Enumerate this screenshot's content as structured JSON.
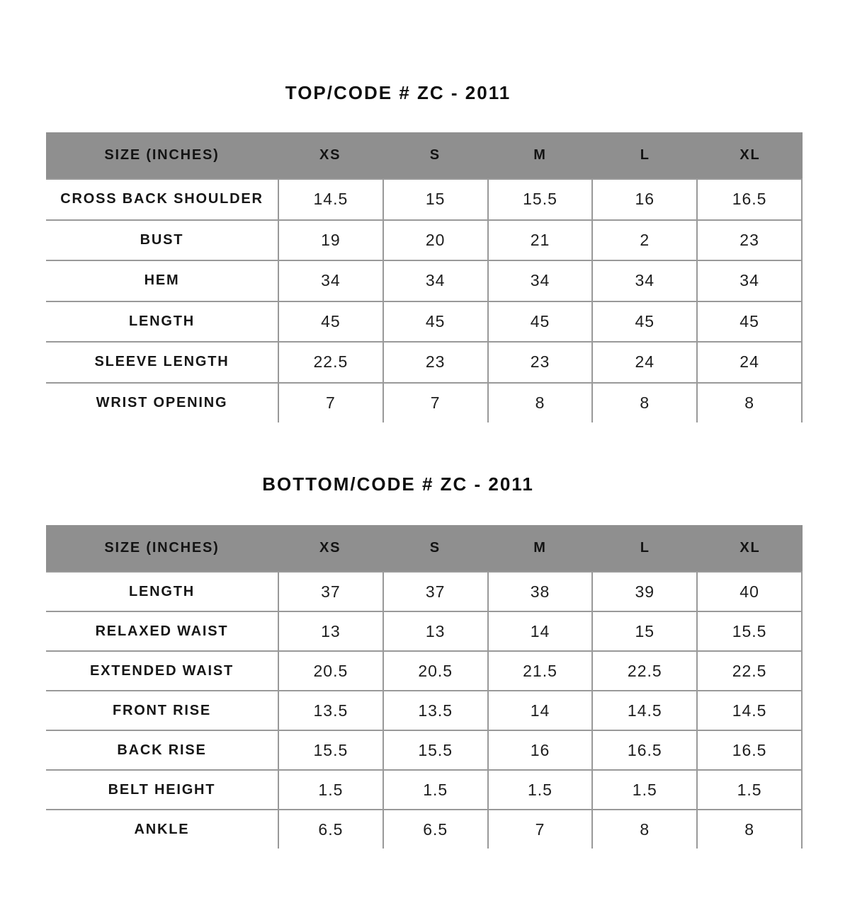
{
  "page": {
    "background": "#ffffff"
  },
  "colors": {
    "header_bg": "#8f8f8f",
    "border": "#999999",
    "text": "#141414"
  },
  "tables": [
    {
      "title": "TOP/CODE # ZC - 2011",
      "columns": [
        "SIZE (INCHES)",
        "XS",
        "S",
        "M",
        "L",
        "XL"
      ],
      "rows": [
        {
          "label": "CROSS BACK SHOULDER",
          "values": [
            "14.5",
            "15",
            "15.5",
            "16",
            "16.5"
          ]
        },
        {
          "label": "BUST",
          "values": [
            "19",
            "20",
            "21",
            "2",
            "23"
          ]
        },
        {
          "label": "HEM",
          "values": [
            "34",
            "34",
            "34",
            "34",
            "34"
          ]
        },
        {
          "label": "LENGTH",
          "values": [
            "45",
            "45",
            "45",
            "45",
            "45"
          ]
        },
        {
          "label": "SLEEVE LENGTH",
          "values": [
            "22.5",
            "23",
            "23",
            "24",
            "24"
          ]
        },
        {
          "label": "WRIST OPENING",
          "values": [
            "7",
            "7",
            "8",
            "8",
            "8"
          ]
        }
      ]
    },
    {
      "title": "BOTTOM/CODE # ZC - 2011",
      "columns": [
        "SIZE (INCHES)",
        "XS",
        "S",
        "M",
        "L",
        "XL"
      ],
      "rows": [
        {
          "label": "LENGTH",
          "values": [
            "37",
            "37",
            "38",
            "39",
            "40"
          ]
        },
        {
          "label": "RELAXED WAIST",
          "values": [
            "13",
            "13",
            "14",
            "15",
            "15.5"
          ]
        },
        {
          "label": "EXTENDED WAIST",
          "values": [
            "20.5",
            "20.5",
            "21.5",
            "22.5",
            "22.5"
          ]
        },
        {
          "label": "FRONT RISE",
          "values": [
            "13.5",
            "13.5",
            "14",
            "14.5",
            "14.5"
          ]
        },
        {
          "label": "BACK RISE",
          "values": [
            "15.5",
            "15.5",
            "16",
            "16.5",
            "16.5"
          ]
        },
        {
          "label": "BELT HEIGHT",
          "values": [
            "1.5",
            "1.5",
            "1.5",
            "1.5",
            "1.5"
          ]
        },
        {
          "label": "ANKLE",
          "values": [
            "6.5",
            "6.5",
            "7",
            "8",
            "8"
          ]
        }
      ]
    }
  ]
}
